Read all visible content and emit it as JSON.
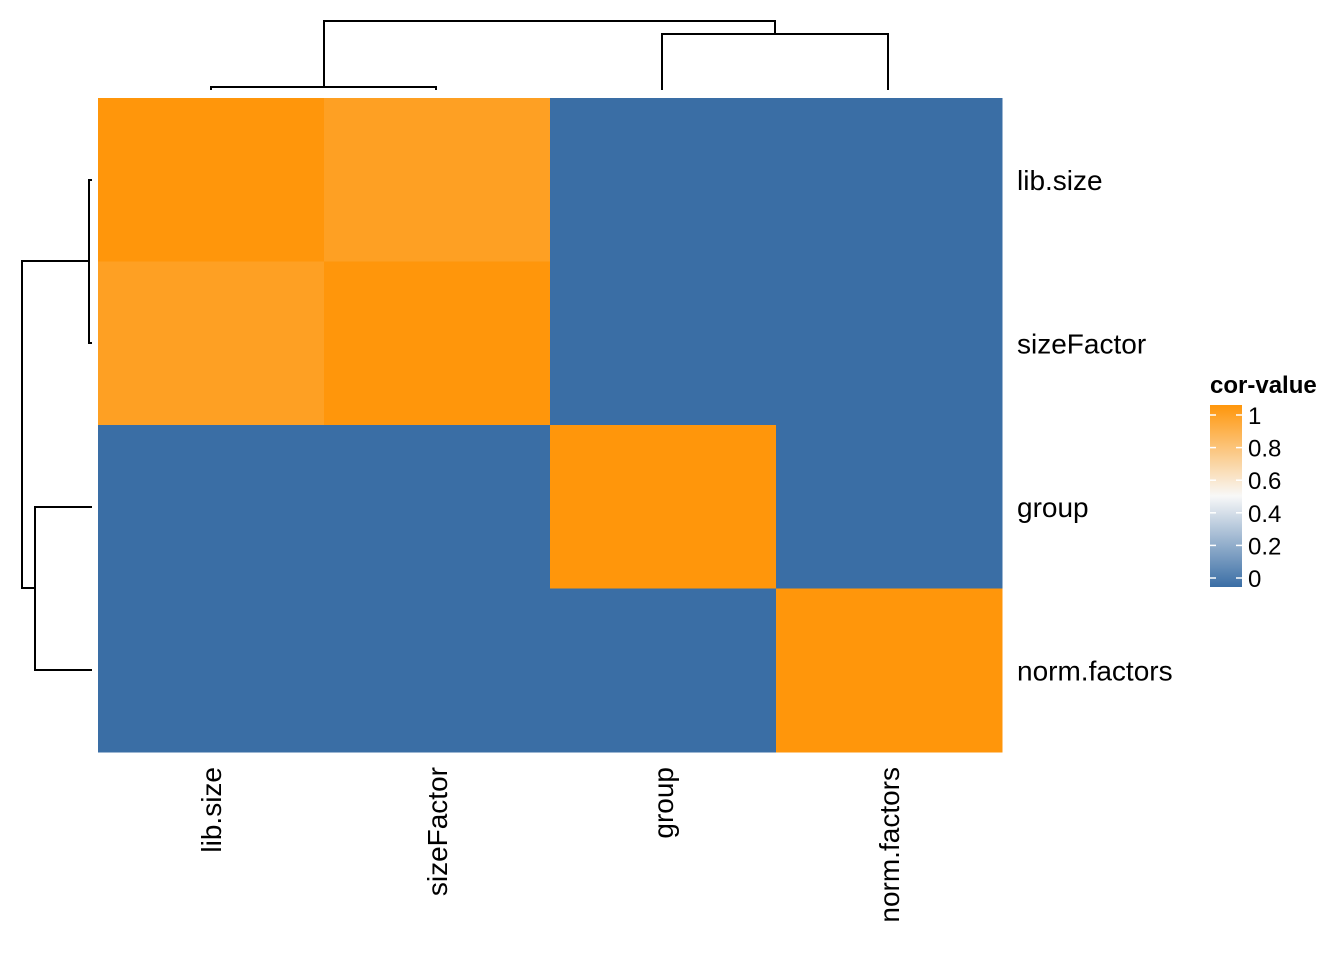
{
  "chart_data": {
    "type": "heatmap",
    "title": "",
    "xlabel": "",
    "ylabel": "",
    "columns": [
      "lib.size",
      "sizeFactor",
      "group",
      "norm.factors"
    ],
    "rows": [
      "lib.size",
      "sizeFactor",
      "group",
      "norm.factors"
    ],
    "values": [
      [
        1.0,
        0.95,
        0.0,
        0.0
      ],
      [
        0.95,
        1.0,
        0.0,
        0.0
      ],
      [
        0.0,
        0.0,
        1.0,
        0.0
      ],
      [
        0.0,
        0.0,
        0.0,
        1.0
      ]
    ],
    "legend": {
      "title": "cor-value",
      "ticks": [
        "1",
        "0.8",
        "0.6",
        "0.4",
        "0.2",
        "0"
      ],
      "tick_values": [
        1,
        0.8,
        0.6,
        0.4,
        0.2,
        0
      ],
      "range": [
        0,
        1
      ],
      "placement": "right"
    },
    "color_scale": {
      "low": "#3a6ea5",
      "mid": "#f8f8f8",
      "high": "#ff960b"
    },
    "row_dendrogram": true,
    "column_dendrogram": true
  }
}
